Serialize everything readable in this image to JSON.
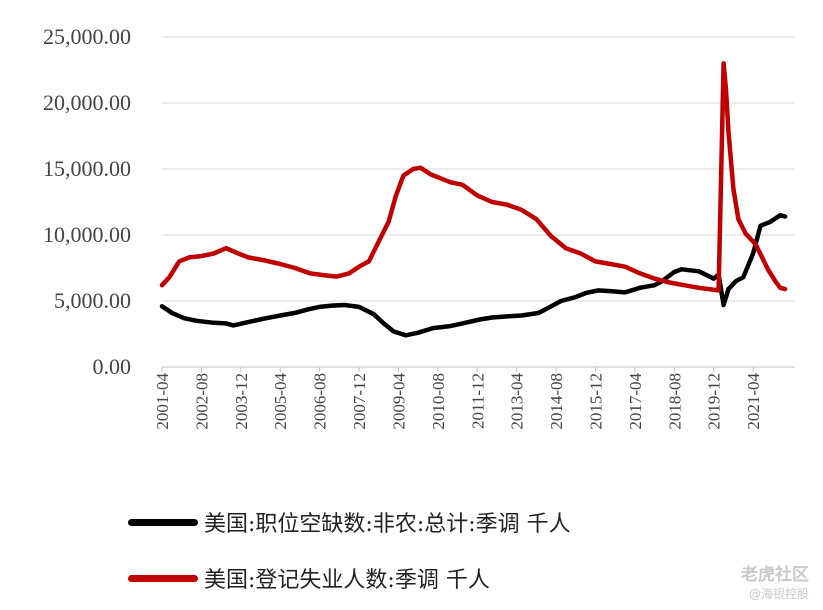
{
  "chart_data": {
    "type": "line",
    "title": "",
    "xlabel": "",
    "ylabel": "",
    "ylim": [
      0,
      25000
    ],
    "xlim": [
      "2001-04",
      "2022-09"
    ],
    "y_ticks": [
      "0.00",
      "5,000.00",
      "10,000.00",
      "15,000.00",
      "20,000.00",
      "25,000.00"
    ],
    "x_ticks": [
      "2001-04",
      "2002-08",
      "2003-12",
      "2005-04",
      "2006-08",
      "2007-12",
      "2009-04",
      "2010-08",
      "2011-12",
      "2013-04",
      "2014-08",
      "2015-12",
      "2017-04",
      "2018-08",
      "2019-12",
      "2021-04"
    ],
    "grid": "horizontal",
    "legend_position": "bottom",
    "series": [
      {
        "name": "美国:职位空缺数:非农:总计:季调 千人",
        "color": "#000000",
        "points": [
          [
            "2001-04",
            4600
          ],
          [
            "2001-08",
            4100
          ],
          [
            "2002-01",
            3700
          ],
          [
            "2002-06",
            3500
          ],
          [
            "2003-01",
            3350
          ],
          [
            "2003-06",
            3300
          ],
          [
            "2003-09",
            3150
          ],
          [
            "2004-03",
            3400
          ],
          [
            "2004-09",
            3650
          ],
          [
            "2005-04",
            3900
          ],
          [
            "2005-10",
            4100
          ],
          [
            "2006-04",
            4400
          ],
          [
            "2006-08",
            4550
          ],
          [
            "2007-01",
            4650
          ],
          [
            "2007-06",
            4700
          ],
          [
            "2007-12",
            4550
          ],
          [
            "2008-06",
            4000
          ],
          [
            "2008-10",
            3300
          ],
          [
            "2009-02",
            2700
          ],
          [
            "2009-07",
            2400
          ],
          [
            "2009-12",
            2600
          ],
          [
            "2010-06",
            2950
          ],
          [
            "2011-01",
            3100
          ],
          [
            "2011-06",
            3300
          ],
          [
            "2012-01",
            3600
          ],
          [
            "2012-06",
            3750
          ],
          [
            "2013-01",
            3850
          ],
          [
            "2013-06",
            3900
          ],
          [
            "2014-01",
            4100
          ],
          [
            "2014-06",
            4600
          ],
          [
            "2014-10",
            5000
          ],
          [
            "2015-04",
            5300
          ],
          [
            "2015-08",
            5600
          ],
          [
            "2016-01",
            5800
          ],
          [
            "2016-06",
            5750
          ],
          [
            "2016-12",
            5650
          ],
          [
            "2017-06",
            6000
          ],
          [
            "2017-12",
            6200
          ],
          [
            "2018-03",
            6500
          ],
          [
            "2018-08",
            7200
          ],
          [
            "2018-11",
            7400
          ],
          [
            "2019-06",
            7250
          ],
          [
            "2019-12",
            6700
          ],
          [
            "2020-02",
            7000
          ],
          [
            "2020-04",
            4700
          ],
          [
            "2020-06",
            5900
          ],
          [
            "2020-09",
            6500
          ],
          [
            "2020-12",
            6800
          ],
          [
            "2021-04",
            8600
          ],
          [
            "2021-07",
            10700
          ],
          [
            "2021-11",
            11000
          ],
          [
            "2022-03",
            11500
          ],
          [
            "2022-05",
            11400
          ]
        ]
      },
      {
        "name": "美国:登记失业人数:季调 千人",
        "color": "#c00000",
        "points": [
          [
            "2001-04",
            6200
          ],
          [
            "2001-07",
            6800
          ],
          [
            "2001-11",
            8000
          ],
          [
            "2002-03",
            8300
          ],
          [
            "2002-08",
            8400
          ],
          [
            "2003-01",
            8600
          ],
          [
            "2003-06",
            9000
          ],
          [
            "2003-11",
            8600
          ],
          [
            "2004-03",
            8300
          ],
          [
            "2004-09",
            8100
          ],
          [
            "2005-04",
            7800
          ],
          [
            "2005-10",
            7500
          ],
          [
            "2006-04",
            7100
          ],
          [
            "2006-08",
            7000
          ],
          [
            "2006-12",
            6900
          ],
          [
            "2007-03",
            6850
          ],
          [
            "2007-08",
            7100
          ],
          [
            "2007-12",
            7600
          ],
          [
            "2008-04",
            8000
          ],
          [
            "2008-08",
            9500
          ],
          [
            "2008-12",
            11000
          ],
          [
            "2009-03",
            13000
          ],
          [
            "2009-06",
            14500
          ],
          [
            "2009-10",
            15000
          ],
          [
            "2010-01",
            15100
          ],
          [
            "2010-05",
            14600
          ],
          [
            "2010-09",
            14300
          ],
          [
            "2011-01",
            14000
          ],
          [
            "2011-06",
            13800
          ],
          [
            "2011-12",
            13000
          ],
          [
            "2012-06",
            12500
          ],
          [
            "2012-12",
            12300
          ],
          [
            "2013-06",
            11900
          ],
          [
            "2013-12",
            11200
          ],
          [
            "2014-06",
            9900
          ],
          [
            "2014-12",
            9000
          ],
          [
            "2015-06",
            8600
          ],
          [
            "2015-12",
            8000
          ],
          [
            "2016-06",
            7800
          ],
          [
            "2016-12",
            7600
          ],
          [
            "2017-06",
            7100
          ],
          [
            "2017-12",
            6700
          ],
          [
            "2018-06",
            6400
          ],
          [
            "2018-12",
            6200
          ],
          [
            "2019-06",
            6000
          ],
          [
            "2020-02",
            5800
          ],
          [
            "2020-04",
            23000
          ],
          [
            "2020-05",
            21000
          ],
          [
            "2020-06",
            17800
          ],
          [
            "2020-08",
            13500
          ],
          [
            "2020-10",
            11200
          ],
          [
            "2021-01",
            10100
          ],
          [
            "2021-05",
            9300
          ],
          [
            "2021-10",
            7400
          ],
          [
            "2022-01",
            6500
          ],
          [
            "2022-03",
            6000
          ],
          [
            "2022-05",
            5900
          ]
        ]
      }
    ]
  },
  "watermark": {
    "line1": "老虎社区",
    "line2": "@海银控股"
  }
}
